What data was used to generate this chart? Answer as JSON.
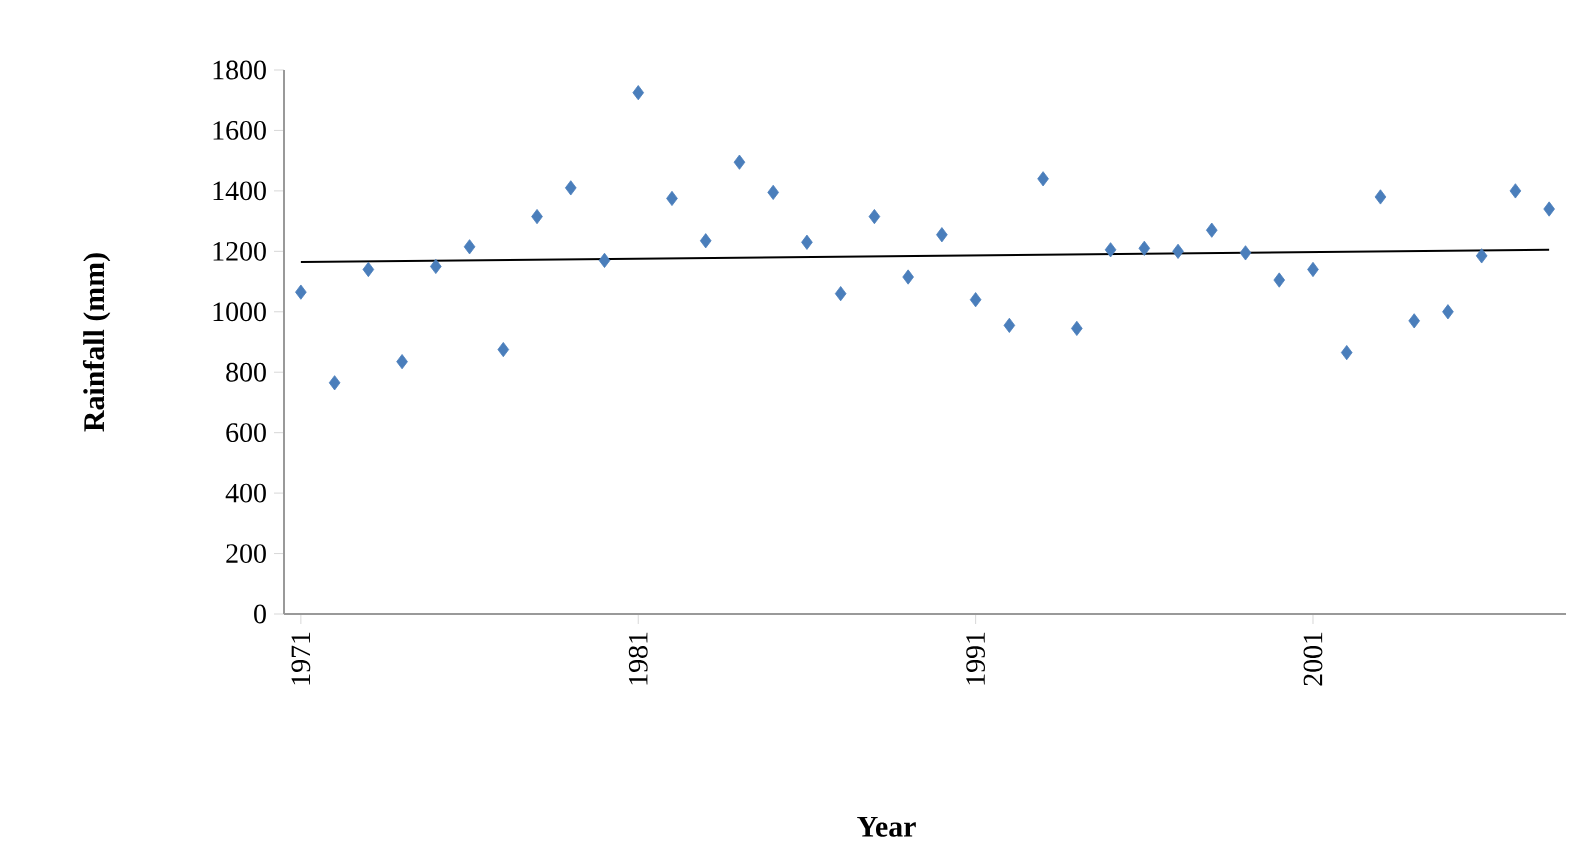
{
  "chart_data": {
    "type": "scatter",
    "xlabel": "Year",
    "ylabel": "Rainfall (mm)",
    "xlim": [
      1970.5,
      2008.5
    ],
    "xticks": [
      1971,
      1981,
      1991,
      2001
    ],
    "ylim": [
      0,
      1800
    ],
    "yticks": [
      0,
      200,
      400,
      600,
      800,
      1000,
      1200,
      1400,
      1600,
      1800
    ],
    "grid": false,
    "marker": "diamond",
    "series": [
      {
        "color": "#4a7ebb",
        "x": [
          1971,
          1972,
          1973,
          1974,
          1975,
          1976,
          1977,
          1978,
          1979,
          1980,
          1981,
          1982,
          1983,
          1984,
          1985,
          1986,
          1987,
          1988,
          1989,
          1990,
          1991,
          1992,
          1993,
          1994,
          1995,
          1996,
          1997,
          1998,
          1999,
          2000,
          2001,
          2002,
          2003,
          2004,
          2005,
          2006,
          2007,
          2008
        ],
        "values": [
          1065,
          765,
          1140,
          835,
          1150,
          1215,
          875,
          1315,
          1410,
          1170,
          1725,
          1375,
          1235,
          1495,
          1395,
          1230,
          1060,
          1315,
          1115,
          1255,
          1040,
          955,
          1440,
          945,
          1205,
          1210,
          1200,
          1270,
          1195,
          1105,
          1140,
          865,
          1380,
          970,
          1000,
          1185,
          1400,
          1340
        ]
      },
      {
        "type": "line",
        "color": "#000000",
        "marker": "none",
        "line_style": "solid",
        "x": [
          1971,
          2008
        ],
        "values": [
          1165,
          1205
        ]
      }
    ]
  }
}
